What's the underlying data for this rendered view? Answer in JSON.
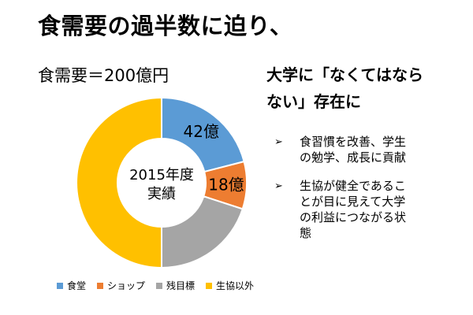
{
  "title": "食需要の過半数に迫り、",
  "subtitle": "食需要＝200億円",
  "colors": {
    "shokudo": "#5b9bd5",
    "shop": "#ed7d31",
    "zan": "#a5a5a5",
    "other": "#ffc000"
  },
  "chart_data": {
    "type": "pie",
    "variant": "donut",
    "center_label": [
      "2015年度",
      "実績"
    ],
    "unit": "億円",
    "total": 200,
    "categories": [
      "食堂",
      "ショップ",
      "残目標",
      "生協以外"
    ],
    "values": [
      42,
      18,
      40,
      100
    ],
    "data_labels": [
      "42億",
      "18億",
      "",
      ""
    ],
    "legend_position": "bottom"
  },
  "right": {
    "heading_lines": [
      "大学に「なくてはなら",
      "ない」存在に"
    ],
    "bullets": [
      {
        "marker": "➢",
        "text": "食習慣を改善、学生\nの勉学、成長に貢献"
      },
      {
        "marker": "➢",
        "text": "生協が健全であるこ\nとが目に見えて大学\nの利益につながる状\n態"
      }
    ]
  }
}
